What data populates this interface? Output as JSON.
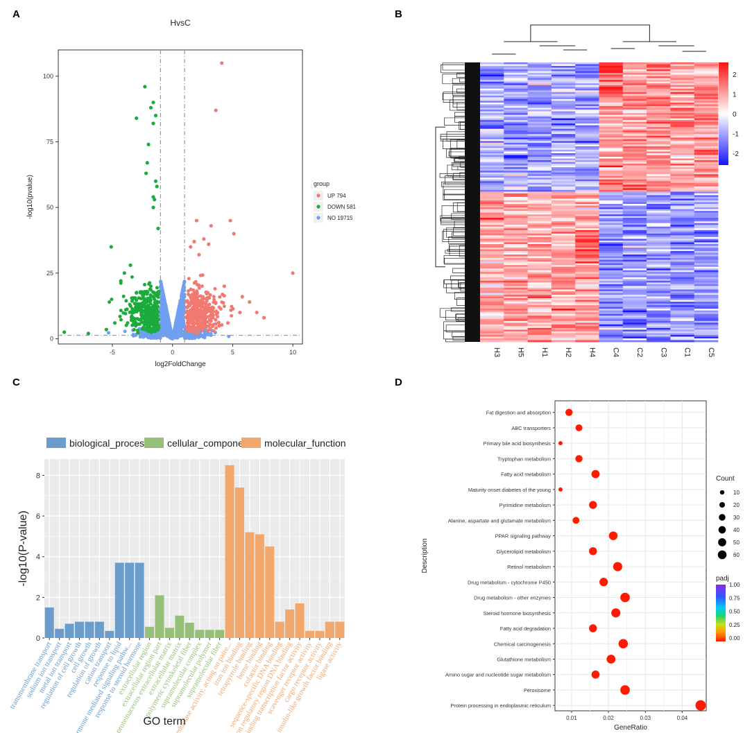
{
  "panels": {
    "a": "A",
    "b": "B",
    "c": "C",
    "d": "D"
  },
  "chart_data": [
    {
      "type": "scatter",
      "panel": "A",
      "title": "HvsC",
      "xlabel": "log2FoldChange",
      "ylabel": "-log10(pvalue)",
      "xlim": [
        -9.5,
        10.8
      ],
      "ylim": [
        -2,
        110
      ],
      "xticks": [
        -5,
        0,
        5,
        10
      ],
      "yticks": [
        0,
        25,
        50,
        75,
        100
      ],
      "thresholds": {
        "log2fc": [
          -1,
          1
        ],
        "neglog10p": 1.3
      },
      "legend": {
        "title": "group",
        "position": "right",
        "entries": [
          {
            "label": "UP 794",
            "color": "#f07a72"
          },
          {
            "label": "DOWN 581",
            "color": "#1aab3c"
          },
          {
            "label": "NO 19715",
            "color": "#6f9ff2"
          }
        ]
      },
      "highlight_points": {
        "up": [
          [
            4.1,
            105
          ],
          [
            3.6,
            87
          ],
          [
            10,
            25
          ],
          [
            4.8,
            45
          ],
          [
            3.2,
            43
          ],
          [
            2.6,
            38
          ],
          [
            1.8,
            37
          ],
          [
            1.5,
            35
          ],
          [
            3.0,
            36
          ],
          [
            2.2,
            32
          ],
          [
            2.0,
            45
          ],
          [
            5.1,
            40
          ],
          [
            5.8,
            16
          ],
          [
            6.4,
            14
          ],
          [
            7.0,
            10
          ],
          [
            7.6,
            8
          ],
          [
            5.6,
            10
          ],
          [
            4.6,
            6
          ],
          [
            3.9,
            5
          ],
          [
            4.3,
            20
          ]
        ],
        "down": [
          [
            -2.3,
            96
          ],
          [
            -1.6,
            90
          ],
          [
            -1.8,
            88
          ],
          [
            -1.4,
            85
          ],
          [
            -3.0,
            84
          ],
          [
            -1.6,
            82
          ],
          [
            -2.0,
            74
          ],
          [
            -2.1,
            67
          ],
          [
            -2.2,
            63
          ],
          [
            -1.4,
            60
          ],
          [
            -1.3,
            58
          ],
          [
            -1.6,
            54
          ],
          [
            -1.5,
            53
          ],
          [
            -1.6,
            50
          ],
          [
            -5.1,
            35
          ],
          [
            -3.5,
            28
          ],
          [
            -4.0,
            25
          ],
          [
            -4.3,
            22
          ],
          [
            -9.0,
            2.5
          ],
          [
            -7.0,
            2.0
          ],
          [
            -5.5,
            3.5
          ],
          [
            -4.8,
            6
          ],
          [
            -3.3,
            8
          ],
          [
            -1.2,
            42
          ]
        ]
      }
    },
    {
      "type": "heatmap",
      "panel": "B",
      "columns": [
        "H3",
        "H5",
        "H1",
        "H2",
        "H4",
        "C4",
        "C2",
        "C3",
        "C1",
        "C5"
      ],
      "color_scale": {
        "min": -2.6,
        "max": 2.6,
        "low": "#1414ff",
        "mid": "#ffffff",
        "high": "#ff1010",
        "ticks": [
          2,
          1,
          0,
          -1,
          -2
        ]
      },
      "row_clusters": [
        "down in H (upper block)",
        "up in H (lower block)"
      ]
    },
    {
      "type": "bar",
      "panel": "C",
      "xlabel": "GO term",
      "ylabel": "-log10(P-value)",
      "ylim": [
        0,
        8.8
      ],
      "yticks": [
        0,
        2,
        4,
        6,
        8
      ],
      "legend": {
        "position": "top",
        "entries": [
          {
            "label": "biological_process",
            "color": "#6a9ccc"
          },
          {
            "label": "cellular_component",
            "color": "#96c078"
          },
          {
            "label": "molecular_function",
            "color": "#f2a76d"
          }
        ]
      },
      "categories": [
        "transmembrane transport",
        "sodium ion transport",
        "metal ion transport",
        "regulation of cell growth",
        "cell growth",
        "regulation of growth",
        "cation transport",
        "response to lipid",
        "steroid hormone mediated signaling pathw...",
        "response to steroid hormone",
        "extracellular region",
        "extracellular region part",
        "proteinaceous extracellular matrix",
        "extracellular matrix",
        "polymeric cytoskeletal fiber",
        "supramolecular complex",
        "supramolecular polymer",
        "supramolecular fiber",
        "oxidoreductase activity, acting on paire...",
        "iron ion binding",
        "tetrapyrrole binding",
        "heme binding",
        "cofactor binding",
        "sequence-specific DNA binding",
        "transcription regulatory region DNA binding",
        "DNA binding transcription factor activity",
        "scavenger receptor activity",
        "cargo receptor activity",
        "insulin-like growth factor binding",
        "ligase activity"
      ],
      "series": [
        {
          "name": "biological_process",
          "color": "#6a9ccc",
          "values": [
            1.5,
            0.45,
            0.7,
            0.8,
            0.8,
            0.8,
            0.35,
            3.7,
            3.7,
            3.7,
            null,
            null,
            null,
            null,
            null,
            null,
            null,
            null,
            null,
            null,
            null,
            null,
            null,
            null,
            null,
            null,
            null,
            null,
            null,
            null
          ]
        },
        {
          "name": "cellular_component",
          "color": "#96c078",
          "values": [
            null,
            null,
            null,
            null,
            null,
            null,
            null,
            null,
            null,
            null,
            0.55,
            2.1,
            0.5,
            1.1,
            0.75,
            0.4,
            0.4,
            0.4,
            null,
            null,
            null,
            null,
            null,
            null,
            null,
            null,
            null,
            null,
            null,
            null
          ]
        },
        {
          "name": "molecular_function",
          "color": "#f2a76d",
          "values": [
            null,
            null,
            null,
            null,
            null,
            null,
            null,
            null,
            null,
            null,
            null,
            null,
            null,
            null,
            null,
            null,
            null,
            null,
            8.5,
            7.4,
            5.2,
            5.1,
            4.5,
            0.8,
            1.4,
            1.7,
            0.35,
            0.35,
            0.8,
            0.8
          ]
        }
      ]
    },
    {
      "type": "scatter",
      "panel": "D",
      "xlabel": "GeneRatio",
      "ylabel": "Description",
      "xlim": [
        0.0055,
        0.0465
      ],
      "xticks": [
        0.01,
        0.02,
        0.03,
        0.04
      ],
      "xtick_labels": [
        "0.01",
        "0.02",
        "0.03",
        "0.04"
      ],
      "size_legend": {
        "title": "Count",
        "values": [
          10,
          20,
          30,
          40,
          50,
          60
        ]
      },
      "color_legend": {
        "title": "padj",
        "ticks": [
          "1.00",
          "0.75",
          "0.50",
          "0.25",
          "0.00"
        ]
      },
      "points": [
        {
          "term": "Fat digestion and absorption",
          "x": 0.0093,
          "count": 25,
          "padj": 0.0
        },
        {
          "term": "ABC transporters",
          "x": 0.012,
          "count": 22,
          "padj": 0.0
        },
        {
          "term": "Primary bile acid biosynthesis",
          "x": 0.007,
          "count": 5,
          "padj": 0.0
        },
        {
          "term": "Tryptophan metabolism",
          "x": 0.012,
          "count": 25,
          "padj": 0.0
        },
        {
          "term": "Fatty acid metabolism",
          "x": 0.0165,
          "count": 35,
          "padj": 0.0
        },
        {
          "term": "Maturity onset diabetes of the young",
          "x": 0.007,
          "count": 5,
          "padj": 0.0
        },
        {
          "term": "Pyrimidine metabolism",
          "x": 0.0158,
          "count": 32,
          "padj": 0.0
        },
        {
          "term": "Alanine, aspartate and glutamate metabolism",
          "x": 0.0112,
          "count": 22,
          "padj": 0.0
        },
        {
          "term": "PPAR signaling pathway",
          "x": 0.0213,
          "count": 40,
          "padj": 0.0
        },
        {
          "term": "Glycerolipid metabolism",
          "x": 0.0158,
          "count": 32,
          "padj": 0.0
        },
        {
          "term": "Retinol metabolism",
          "x": 0.0225,
          "count": 45,
          "padj": 0.0
        },
        {
          "term": "Drug metabolism - cytochrome P450",
          "x": 0.0187,
          "count": 38,
          "padj": 0.0
        },
        {
          "term": "Drug metabolism - other enzymes",
          "x": 0.0245,
          "count": 50,
          "padj": 0.0
        },
        {
          "term": "Steroid hormone biosynthesis",
          "x": 0.022,
          "count": 45,
          "padj": 0.0
        },
        {
          "term": "Fatty acid degradation",
          "x": 0.0158,
          "count": 32,
          "padj": 0.0
        },
        {
          "term": "Chemical carcinogenesis",
          "x": 0.024,
          "count": 48,
          "padj": 0.0
        },
        {
          "term": "Glutathione metabolism",
          "x": 0.0207,
          "count": 42,
          "padj": 0.0
        },
        {
          "term": "Amino sugar and nucleotide sugar metabolism",
          "x": 0.0165,
          "count": 34,
          "padj": 0.0
        },
        {
          "term": "Peroxisome",
          "x": 0.0245,
          "count": 50,
          "padj": 0.0
        },
        {
          "term": "Protein processing in endoplasmic reticulum",
          "x": 0.045,
          "count": 62,
          "padj": 0.0
        }
      ]
    }
  ]
}
